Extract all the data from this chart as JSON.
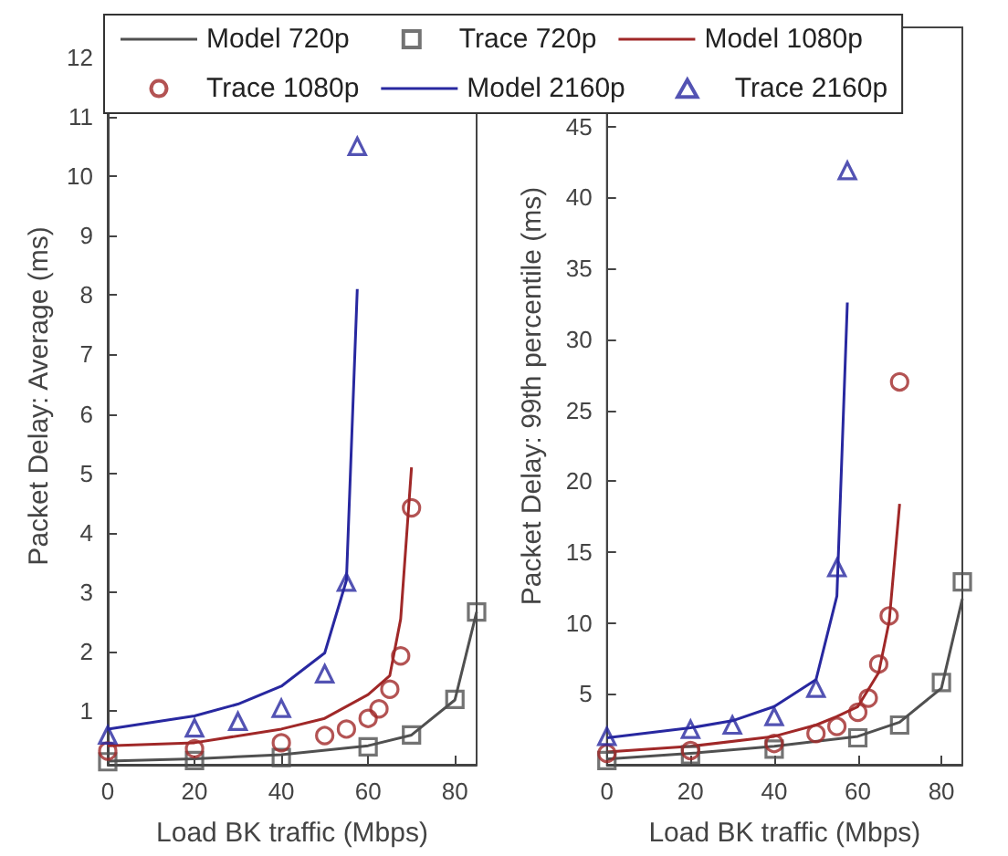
{
  "chart_data": [
    {
      "type": "line",
      "xlabel": "Load BK traffic (Mbps)",
      "ylabel": "Packet Delay: Average (ms)",
      "xlim": [
        0,
        85
      ],
      "xticks": [
        0,
        20,
        40,
        60,
        80
      ],
      "ylim": [
        0.1,
        12.5
      ],
      "yticks": [
        1,
        2,
        3,
        4,
        5,
        6,
        7,
        8,
        9,
        10,
        11,
        12
      ],
      "grid": false,
      "legend": "top",
      "series": [
        {
          "name": "Model 720p",
          "type": "line",
          "marker": "none",
          "color": "#505050",
          "x": [
            0,
            20,
            40,
            60,
            70,
            80,
            85
          ],
          "values": [
            0.16,
            0.2,
            0.27,
            0.42,
            0.6,
            1.19,
            2.67
          ]
        },
        {
          "name": "Trace 720p",
          "type": "scatter",
          "marker": "square",
          "color": "#505050",
          "x": [
            0,
            20,
            40,
            60,
            70,
            80,
            85
          ],
          "values": [
            0.15,
            0.17,
            0.22,
            0.4,
            0.6,
            1.2,
            2.67
          ]
        },
        {
          "name": "Model 1080p",
          "type": "line",
          "marker": "none",
          "color": "#a02828",
          "x": [
            0,
            20,
            40,
            50,
            60,
            65,
            67.5,
            70
          ],
          "values": [
            0.42,
            0.47,
            0.7,
            0.88,
            1.28,
            1.6,
            2.55,
            5.1
          ]
        },
        {
          "name": "Trace 1080p",
          "type": "scatter",
          "marker": "circle",
          "color": "#a02828",
          "x": [
            0,
            20,
            40,
            50,
            55,
            60,
            62.5,
            65,
            67.5,
            70
          ],
          "values": [
            0.33,
            0.37,
            0.47,
            0.59,
            0.7,
            0.88,
            1.04,
            1.37,
            1.93,
            4.42
          ]
        },
        {
          "name": "Model 2160p",
          "type": "line",
          "marker": "none",
          "color": "#2828a0",
          "x": [
            0,
            20,
            30,
            40,
            50,
            55,
            57.5
          ],
          "values": [
            0.7,
            0.92,
            1.12,
            1.42,
            1.98,
            3.2,
            8.1
          ]
        },
        {
          "name": "Trace 2160p",
          "type": "scatter",
          "marker": "triangle",
          "color": "#2828a0",
          "x": [
            0,
            20,
            30,
            40,
            50,
            55,
            57.5
          ],
          "values": [
            0.6,
            0.72,
            0.83,
            1.05,
            1.63,
            3.17,
            10.5
          ]
        }
      ]
    },
    {
      "type": "line",
      "xlabel": "Load BK traffic (Mbps)",
      "ylabel": "Packet Delay: 99th percentile (ms)",
      "xlim": [
        0,
        85
      ],
      "xticks": [
        0,
        20,
        40,
        60,
        80
      ],
      "ylim": [
        0,
        52
      ],
      "yticks": [
        5,
        10,
        15,
        20,
        25,
        30,
        35,
        40,
        45
      ],
      "grid": false,
      "legend": false,
      "series": [
        {
          "type": "line",
          "marker": "none",
          "color": "#505050",
          "x": [
            0,
            20,
            40,
            60,
            70,
            80,
            85
          ],
          "values": [
            0.4,
            0.8,
            1.3,
            2,
            3,
            5.4,
            11.7
          ]
        },
        {
          "type": "scatter",
          "marker": "square",
          "color": "#505050",
          "x": [
            0,
            20,
            40,
            60,
            70,
            80,
            85
          ],
          "values": [
            0.3,
            0.7,
            1.1,
            1.9,
            2.8,
            5.8,
            12.9
          ]
        },
        {
          "type": "line",
          "marker": "none",
          "color": "#a02828",
          "x": [
            0,
            20,
            40,
            50,
            55,
            60,
            65,
            67.5,
            70
          ],
          "values": [
            0.9,
            1.3,
            2,
            2.8,
            3.4,
            4.1,
            6.5,
            10.1,
            18.4
          ]
        },
        {
          "type": "scatter",
          "marker": "circle",
          "color": "#a02828",
          "x": [
            0,
            20,
            40,
            50,
            55,
            60,
            62.5,
            65,
            67.5,
            70
          ],
          "values": [
            0.8,
            1,
            1.5,
            2.2,
            2.7,
            3.7,
            4.7,
            7.1,
            10.5,
            27
          ]
        },
        {
          "type": "line",
          "marker": "none",
          "color": "#2828a0",
          "x": [
            0,
            20,
            30,
            40,
            50,
            55,
            57.5
          ],
          "values": [
            1.9,
            2.6,
            3.1,
            4.1,
            6,
            11.9,
            32.6
          ]
        },
        {
          "type": "scatter",
          "marker": "triangle",
          "color": "#2828a0",
          "x": [
            0,
            20,
            30,
            40,
            50,
            55,
            57.5
          ],
          "values": [
            2,
            2.5,
            2.8,
            3.4,
            5.4,
            13.9,
            41.9
          ]
        }
      ]
    }
  ]
}
